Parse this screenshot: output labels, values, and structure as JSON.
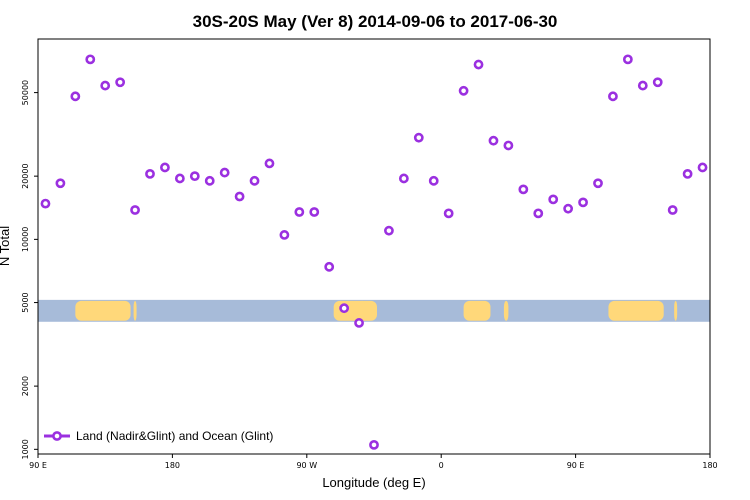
{
  "chart_data": {
    "type": "scatter",
    "title": "30S-20S May (Ver 8)   2014-09-06 to 2017-06-30",
    "xlabel": "Longitude (deg E)",
    "ylabel": "N Total",
    "y_scale": "log",
    "xlim": [
      90,
      540
    ],
    "ylim": [
      950,
      90000
    ],
    "x_ticks": [
      {
        "value": 90,
        "label": "90 E"
      },
      {
        "value": 180,
        "label": "180"
      },
      {
        "value": 270,
        "label": "90 W"
      },
      {
        "value": 360,
        "label": "0"
      },
      {
        "value": 450,
        "label": "90 E"
      },
      {
        "value": 540,
        "label": "180"
      }
    ],
    "y_ticks": [
      {
        "value": 1000,
        "label": "1000"
      },
      {
        "value": 2000,
        "label": "2000"
      },
      {
        "value": 5000,
        "label": "5000"
      },
      {
        "value": 10000,
        "label": "10000"
      },
      {
        "value": 20000,
        "label": "20000"
      },
      {
        "value": 50000,
        "label": "50000"
      }
    ],
    "series": [
      {
        "name": "Land (Nadir&Glint) and Ocean (Glint)",
        "color": "#9b30e0",
        "x": [
          95,
          105,
          115,
          125,
          135,
          145,
          155,
          165,
          175,
          185,
          195,
          205,
          215,
          225,
          235,
          245,
          255,
          265,
          275,
          285,
          295,
          305,
          315,
          325,
          335,
          345,
          355,
          365,
          375,
          385,
          395,
          405,
          415,
          425,
          435,
          445,
          455,
          465,
          475,
          485,
          495,
          505,
          515,
          525,
          535
        ],
        "y": [
          14800,
          18500,
          48000,
          72000,
          54000,
          56000,
          13800,
          20500,
          22000,
          19500,
          20000,
          19000,
          20800,
          16000,
          19000,
          23000,
          10500,
          13500,
          13500,
          7400,
          4700,
          4000,
          1050,
          11000,
          19500,
          30500,
          19000,
          13300,
          51000,
          68000,
          29500,
          28000,
          17300,
          13300,
          15500,
          14000,
          15000,
          18500,
          48000,
          72000,
          54000,
          56000,
          13800,
          20500,
          22000
        ]
      }
    ],
    "legend": "bottom-left",
    "grid": false,
    "background_map_band": {
      "y_range": [
        4050,
        5150
      ],
      "ocean_color": "#a7bbd9",
      "land_color": "#ffd87a",
      "land_x_ranges": [
        [
          115,
          152
        ],
        [
          154,
          156
        ],
        [
          288,
          317
        ],
        [
          305,
          309
        ],
        [
          375,
          393
        ],
        [
          402,
          405
        ],
        [
          472,
          509
        ],
        [
          516,
          518
        ]
      ]
    }
  }
}
